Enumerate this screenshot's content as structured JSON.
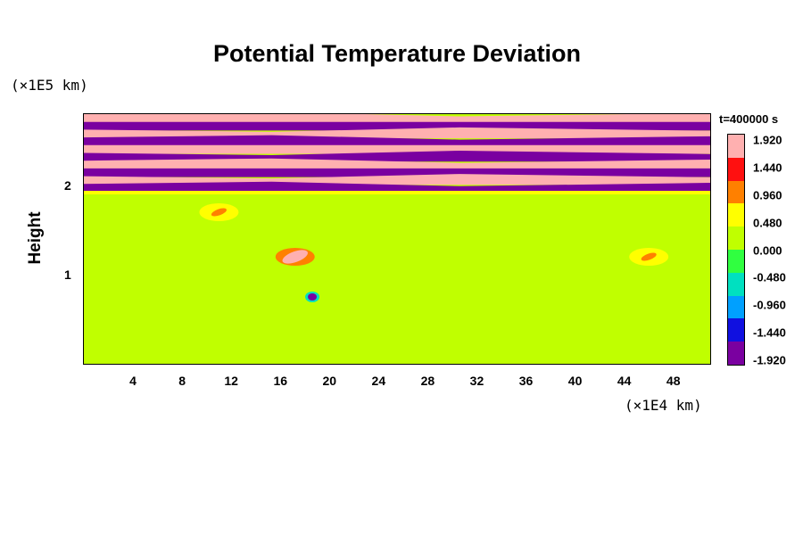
{
  "chart_data": {
    "type": "heatmap",
    "title": "Potential Temperature Deviation",
    "ylabel": "Height",
    "y_unit": "(×1E5 km)",
    "x_unit": "(×1E4 km)",
    "time_label": "t=400000 s",
    "xlim": [
      0,
      51
    ],
    "ylim": [
      0,
      2.8
    ],
    "x_ticks": [
      "4",
      "8",
      "12",
      "16",
      "20",
      "24",
      "28",
      "32",
      "36",
      "40",
      "44",
      "48"
    ],
    "y_ticks": [
      "1",
      "2"
    ],
    "colorbar": {
      "range": [
        -1.92,
        1.92
      ],
      "ticks": [
        "1.920",
        "1.440",
        "0.960",
        "0.480",
        "0.000",
        "-0.480",
        "-0.960",
        "-1.440",
        "-1.920"
      ],
      "colors": [
        "#7a00a0",
        "#1010e0",
        "#00a0ff",
        "#00e0c0",
        "#30ff40",
        "#c0ff00",
        "#ffff00",
        "#ff8000",
        "#ff1010",
        "#ffb0b0"
      ]
    },
    "background_value": 0.0,
    "upper_layer_bands": {
      "y_range": [
        1.93,
        2.8
      ],
      "alternating_values": [
        1.92,
        -1.92
      ]
    },
    "features": [
      {
        "x": 17.2,
        "y": 1.2,
        "value": 1.9
      },
      {
        "x": 18.6,
        "y": 0.75,
        "value": -1.92
      },
      {
        "x": 46.0,
        "y": 1.2,
        "value": 0.9
      },
      {
        "x": 11.0,
        "y": 1.7,
        "value": 0.8
      }
    ]
  }
}
